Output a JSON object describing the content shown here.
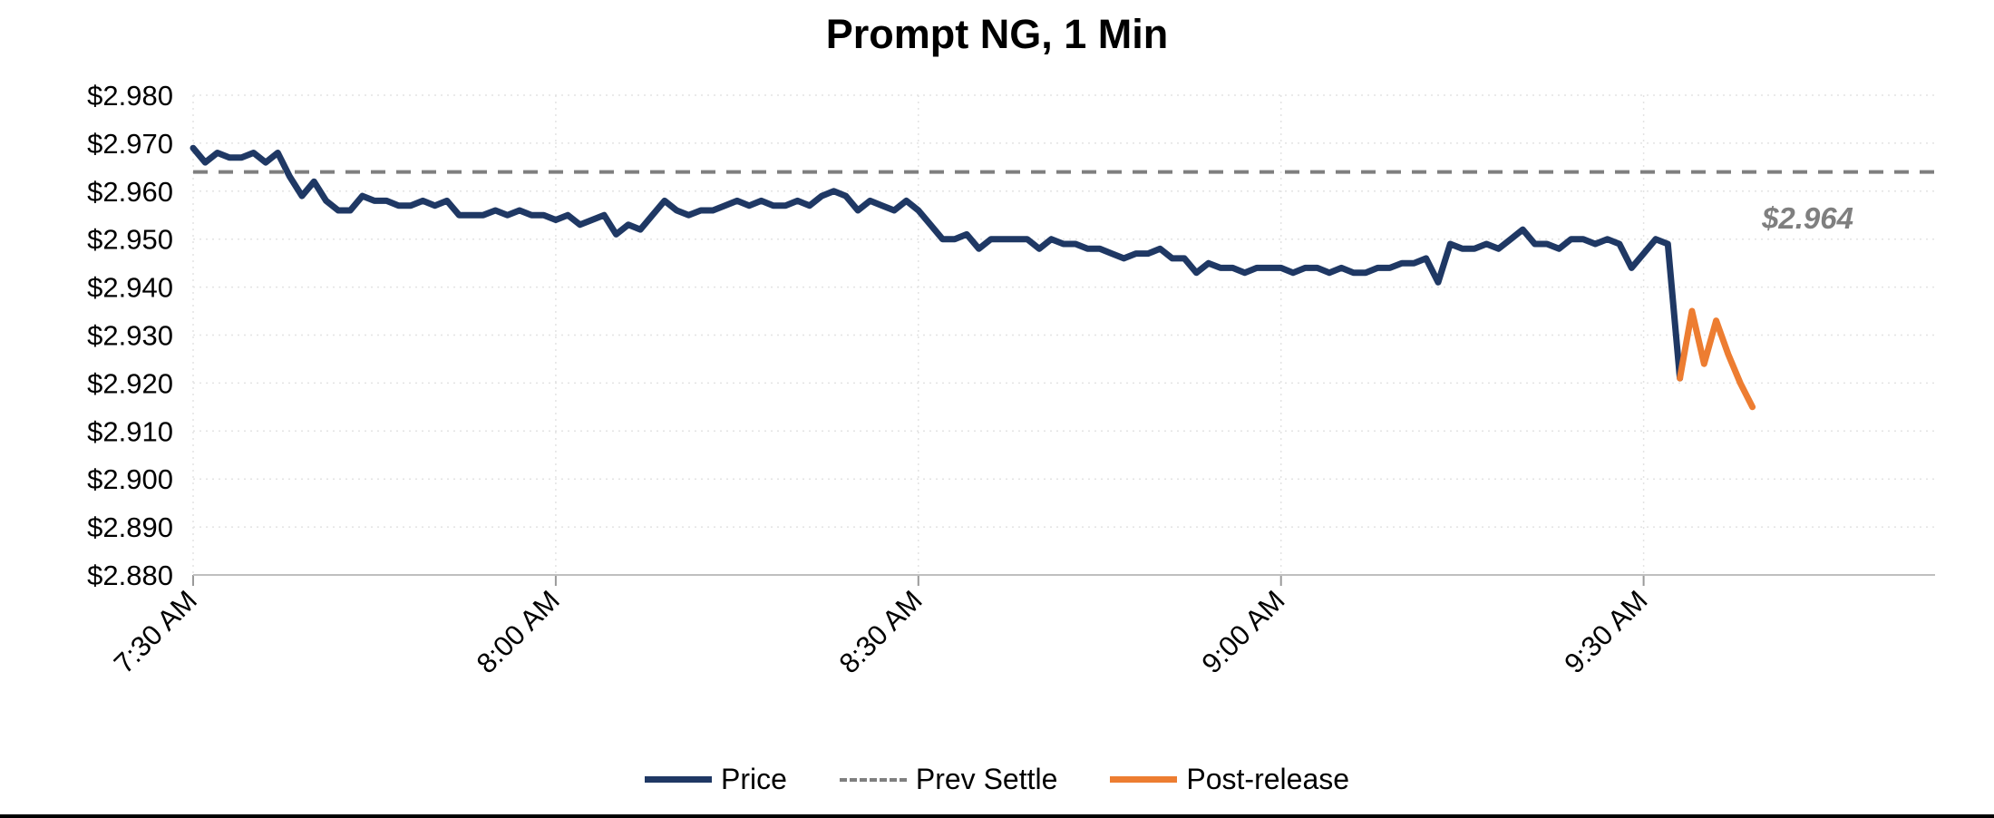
{
  "legend": [
    {
      "label": "Price",
      "color": "#1F3864",
      "dash": false
    },
    {
      "label": "Prev Settle",
      "color": "#7F7F7F",
      "dash": true
    },
    {
      "label": "Post-release",
      "color": "#ED7D31",
      "dash": false
    }
  ],
  "chart_data": {
    "type": "line",
    "title": "Prompt NG, 1 Min",
    "x_axis": {
      "tick_labels": [
        "7:30 AM",
        "8:00 AM",
        "8:30 AM",
        "9:00 AM",
        "9:30 AM"
      ],
      "tick_minutes": [
        0,
        30,
        60,
        90,
        120
      ],
      "start_time": "7:30 AM",
      "interval": "1 minute"
    },
    "y_axis": {
      "min": 2.88,
      "max": 2.98,
      "step": 0.01,
      "tick_labels": [
        "$2.880",
        "$2.890",
        "$2.900",
        "$2.910",
        "$2.920",
        "$2.930",
        "$2.940",
        "$2.950",
        "$2.960",
        "$2.970",
        "$2.980"
      ]
    },
    "grid": true,
    "legend_position": "bottom",
    "prev_settle_value": 2.964,
    "annotation": {
      "text": "$2.964",
      "color": "#7F7F7F"
    },
    "series": [
      {
        "name": "Price",
        "color": "#1F3864",
        "style": "solid",
        "start_minute": 0,
        "interval_minutes": 1,
        "values": [
          2.969,
          2.966,
          2.968,
          2.967,
          2.967,
          2.968,
          2.966,
          2.968,
          2.963,
          2.959,
          2.962,
          2.958,
          2.956,
          2.956,
          2.959,
          2.958,
          2.958,
          2.957,
          2.957,
          2.958,
          2.957,
          2.958,
          2.955,
          2.955,
          2.955,
          2.956,
          2.955,
          2.956,
          2.955,
          2.955,
          2.954,
          2.955,
          2.953,
          2.954,
          2.955,
          2.951,
          2.953,
          2.952,
          2.955,
          2.958,
          2.956,
          2.955,
          2.956,
          2.956,
          2.957,
          2.958,
          2.957,
          2.958,
          2.957,
          2.957,
          2.958,
          2.957,
          2.959,
          2.96,
          2.959,
          2.956,
          2.958,
          2.957,
          2.956,
          2.958,
          2.956,
          2.953,
          2.95,
          2.95,
          2.951,
          2.948,
          2.95,
          2.95,
          2.95,
          2.95,
          2.948,
          2.95,
          2.949,
          2.949,
          2.948,
          2.948,
          2.947,
          2.946,
          2.947,
          2.947,
          2.948,
          2.946,
          2.946,
          2.943,
          2.945,
          2.944,
          2.944,
          2.943,
          2.944,
          2.944,
          2.944,
          2.943,
          2.944,
          2.944,
          2.943,
          2.944,
          2.943,
          2.943,
          2.944,
          2.944,
          2.945,
          2.945,
          2.946,
          2.941,
          2.949,
          2.948,
          2.948,
          2.949,
          2.948,
          2.95,
          2.952,
          2.949,
          2.949,
          2.948,
          2.95,
          2.95,
          2.949,
          2.95,
          2.949,
          2.944,
          2.947,
          2.95,
          2.949,
          2.921
        ]
      },
      {
        "name": "Prev Settle",
        "color": "#7F7F7F",
        "style": "dashed",
        "value": 2.964
      },
      {
        "name": "Post-release",
        "color": "#ED7D31",
        "style": "solid",
        "start_minute": 123,
        "interval_minutes": 1,
        "values": [
          2.921,
          2.935,
          2.924,
          2.933,
          2.926,
          2.92,
          2.915
        ]
      }
    ]
  }
}
